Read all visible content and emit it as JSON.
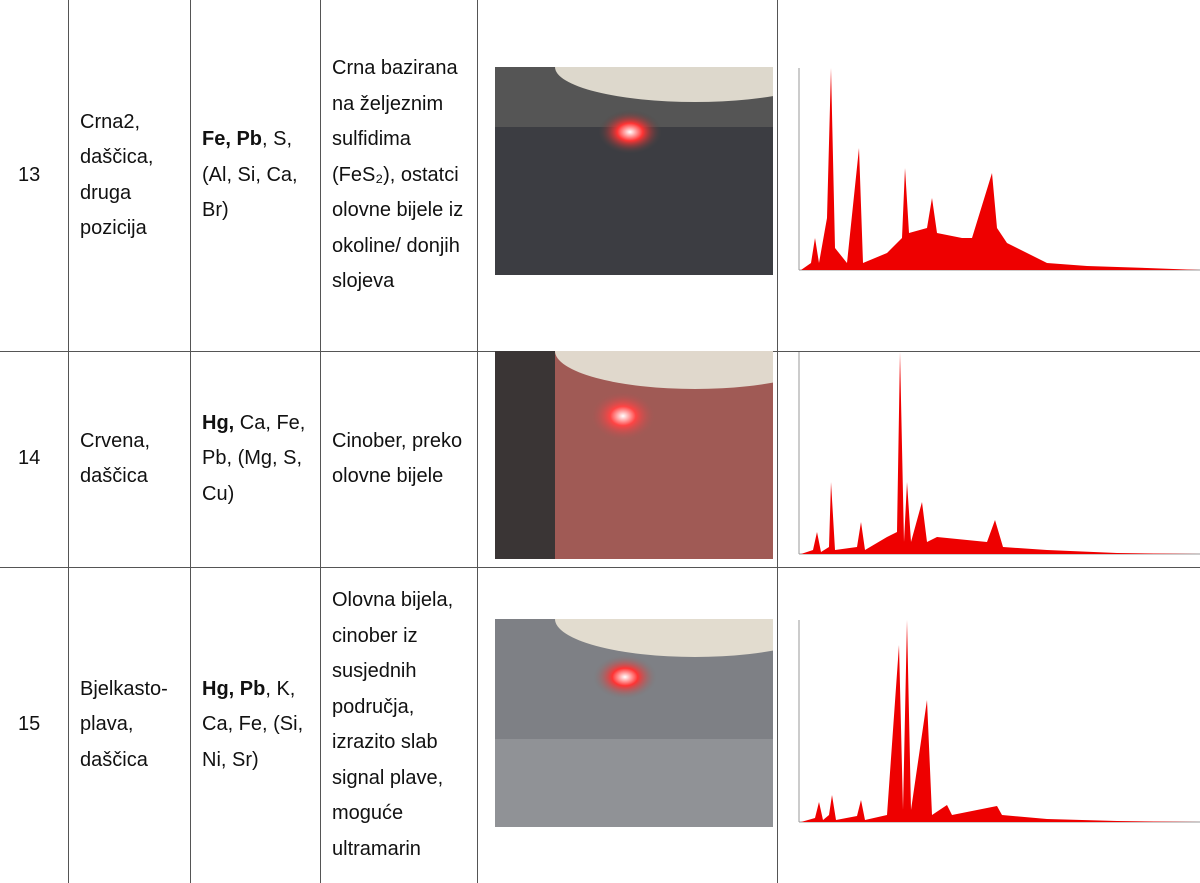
{
  "table": {
    "rows": [
      {
        "number": "13",
        "sample": "Crna2, daščica, druga pozicija",
        "elements": {
          "major": "Fe, Pb",
          "minor": ", S, (Al, Si, Ca, Br)"
        },
        "interpretation": "Crna bazirana na željeznim sulfidima (FeS₂), ostatci olovne bijele iz okoline/ donjih slojeva"
      },
      {
        "number": "14",
        "sample": "Crvena, daščica",
        "elements": {
          "major": "Hg,",
          "minor": " Ca, Fe, Pb, (Mg, S, Cu)"
        },
        "interpretation": "Cinober, preko olovne bijele"
      },
      {
        "number": "15",
        "sample": "Bjelkasto-plava, daščica",
        "elements": {
          "major": "Hg, Pb",
          "minor": ", K, Ca, Fe, (Si, Ni, Sr)"
        },
        "interpretation": "Olovna bijela, cinober iz susjednih područja, izrazito slab signal plave, moguće ultramarin"
      }
    ]
  }
}
